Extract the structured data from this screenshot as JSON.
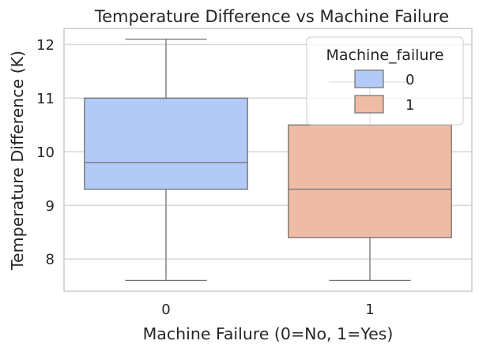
{
  "chart_data": {
    "type": "box",
    "title": "Temperature Difference vs Machine Failure",
    "xlabel": "Machine Failure (0=No, 1=Yes)",
    "ylabel": "Temperature Difference (K)",
    "categories": [
      "0",
      "1"
    ],
    "yticks": [
      8,
      9,
      10,
      11,
      12
    ],
    "ylim": [
      7.4,
      12.3
    ],
    "grid": true,
    "legend": {
      "title": "Machine_failure",
      "placement": "top-right",
      "entries": [
        "0",
        "1"
      ]
    },
    "colors": [
      "#b3c9f6",
      "#eebca5"
    ],
    "line_color": "#707070",
    "boxes": [
      {
        "category": "0",
        "whisker_low": 7.6,
        "q1": 9.3,
        "median": 9.8,
        "q3": 11.0,
        "whisker_high": 12.1
      },
      {
        "category": "1",
        "whisker_low": 7.6,
        "q1": 8.4,
        "median": 9.3,
        "q3": 10.5,
        "whisker_high": 11.3
      }
    ]
  }
}
